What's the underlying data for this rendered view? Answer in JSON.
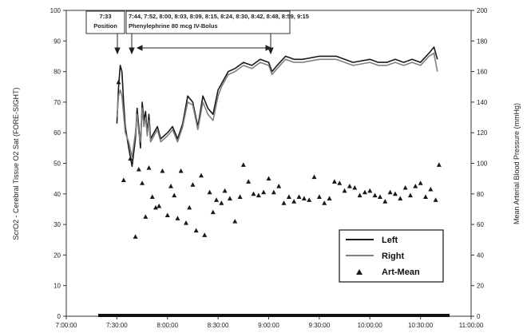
{
  "chart_data": {
    "type": "line",
    "title": "",
    "xlabel": "",
    "ylabel_left": "ScrO2 - Cerebral Tissue O2 Sat (FORE-SIGHT)",
    "ylabel_right": "Mean Arterial Blood Pressure (mmHg)",
    "xlim": [
      "7:00:00",
      "11:00:00"
    ],
    "ylim_left": [
      0,
      100
    ],
    "ylim_right": [
      0,
      200
    ],
    "x_ticks": [
      "7:00:00",
      "7:30:00",
      "8:00:00",
      "8:30:00",
      "9:00:00",
      "9:30:00",
      "10:00:00",
      "10:30:00",
      "11:00:00"
    ],
    "y_ticks_left": [
      "0",
      "10",
      "20",
      "30",
      "40",
      "50",
      "60",
      "70",
      "80",
      "90",
      "100"
    ],
    "y_ticks_right": [
      "0",
      "20",
      "40",
      "60",
      "80",
      "100",
      "120",
      "140",
      "160",
      "180",
      "200"
    ],
    "grid": false,
    "legend": {
      "placement": "bottom-right",
      "entries": [
        "Left",
        "Right",
        "Art-Mean"
      ]
    },
    "annotations": [
      {
        "time": "7:33",
        "label_lines": [
          "7:33",
          "Position"
        ]
      },
      {
        "times": "7:44, 7:52, 8:00, 8:03, 8:09, 8:15, 8:24, 8:30, 8:42, 8:48, 8:59, 9:15",
        "label": "Phenylephrine 80 mcg IV-Bolus"
      }
    ],
    "series": [
      {
        "name": "Left",
        "axis": "left",
        "color": "#1a1a1a",
        "x": [
          "7:30",
          "7:31",
          "7:32",
          "7:33",
          "7:34",
          "7:35",
          "7:37",
          "7:39",
          "7:41",
          "7:42",
          "7:43",
          "7:44",
          "7:45",
          "7:46",
          "7:47",
          "7:48",
          "7:49",
          "7:50",
          "7:52",
          "7:54",
          "7:56",
          "7:58",
          "8:00",
          "8:03",
          "8:06",
          "8:09",
          "8:12",
          "8:15",
          "8:18",
          "8:21",
          "8:24",
          "8:27",
          "8:30",
          "8:32",
          "8:34",
          "8:36",
          "8:40",
          "8:45",
          "8:50",
          "8:55",
          "9:00",
          "9:02",
          "9:05",
          "9:10",
          "9:15",
          "9:20",
          "9:30",
          "9:40",
          "9:50",
          "10:00",
          "10:05",
          "10:10",
          "10:15",
          "10:20",
          "10:25",
          "10:30",
          "10:35",
          "10:38",
          "10:40"
        ],
        "y": [
          63,
          75,
          82,
          80,
          70,
          62,
          55,
          49,
          58,
          68,
          62,
          55,
          70,
          64,
          67,
          60,
          66,
          58,
          60,
          62,
          58,
          59,
          60,
          62,
          58,
          63,
          72,
          70,
          62,
          72,
          68,
          66,
          74,
          76,
          78,
          80,
          81,
          83,
          82,
          84,
          83,
          80,
          82,
          85,
          84,
          84,
          85,
          85,
          83,
          84,
          83,
          83,
          84,
          83,
          84,
          83,
          86,
          88,
          84
        ]
      },
      {
        "name": "Right",
        "axis": "left",
        "color": "#808080",
        "x": [
          "7:30",
          "7:31",
          "7:32",
          "7:33",
          "7:34",
          "7:35",
          "7:37",
          "7:39",
          "7:41",
          "7:42",
          "7:43",
          "7:44",
          "7:45",
          "7:46",
          "7:47",
          "7:48",
          "7:49",
          "7:50",
          "7:52",
          "7:54",
          "7:56",
          "7:58",
          "8:00",
          "8:03",
          "8:06",
          "8:09",
          "8:12",
          "8:15",
          "8:18",
          "8:21",
          "8:24",
          "8:27",
          "8:30",
          "8:32",
          "8:34",
          "8:36",
          "8:40",
          "8:45",
          "8:50",
          "8:55",
          "9:00",
          "9:02",
          "9:05",
          "9:10",
          "9:15",
          "9:20",
          "9:30",
          "9:40",
          "9:50",
          "10:00",
          "10:05",
          "10:10",
          "10:15",
          "10:20",
          "10:25",
          "10:30",
          "10:35",
          "10:38",
          "10:40"
        ],
        "y": [
          65,
          72,
          74,
          72,
          66,
          60,
          57,
          52,
          60,
          66,
          60,
          57,
          68,
          62,
          65,
          59,
          64,
          57,
          59,
          61,
          57,
          58,
          59,
          61,
          57,
          62,
          70,
          69,
          61,
          70,
          66,
          64,
          72,
          75,
          77,
          79,
          80,
          82,
          81,
          83,
          82,
          79,
          81,
          84,
          83,
          83,
          84,
          84,
          82,
          83,
          82,
          82,
          83,
          82,
          83,
          82,
          85,
          86,
          80
        ]
      },
      {
        "name": "Art-Mean",
        "axis": "right",
        "type": "scatter",
        "marker": "triangle",
        "color": "#1a1a1a",
        "x": [
          "7:31",
          "7:34",
          "7:38",
          "7:41",
          "7:43",
          "7:45",
          "7:47",
          "7:49",
          "7:51",
          "7:53",
          "7:55",
          "7:57",
          "8:00",
          "8:02",
          "8:04",
          "8:06",
          "8:08",
          "8:11",
          "8:13",
          "8:15",
          "8:17",
          "8:20",
          "8:22",
          "8:25",
          "8:27",
          "8:29",
          "8:32",
          "8:34",
          "8:37",
          "8:40",
          "8:43",
          "8:45",
          "8:48",
          "8:51",
          "8:54",
          "8:57",
          "9:00",
          "9:03",
          "9:06",
          "9:09",
          "9:12",
          "9:15",
          "9:18",
          "9:21",
          "9:24",
          "9:27",
          "9:30",
          "9:33",
          "9:36",
          "9:39",
          "9:42",
          "9:45",
          "9:48",
          "9:51",
          "9:54",
          "9:57",
          "10:00",
          "10:03",
          "10:06",
          "10:09",
          "10:12",
          "10:15",
          "10:18",
          "10:21",
          "10:24",
          "10:27",
          "10:30",
          "10:33",
          "10:36",
          "10:39",
          "10:41"
        ],
        "y": [
          153,
          89,
          103,
          52,
          96,
          87,
          65,
          97,
          78,
          71,
          72,
          95,
          66,
          85,
          79,
          64,
          95,
          61,
          71,
          86,
          56,
          92,
          53,
          81,
          68,
          76,
          74,
          82,
          77,
          62,
          78,
          99,
          88,
          80,
          79,
          81,
          90,
          81,
          85,
          74,
          78,
          75,
          78,
          77,
          76,
          91,
          78,
          74,
          77,
          88,
          87,
          82,
          85,
          84,
          79,
          81,
          82,
          79,
          78,
          75,
          81,
          80,
          77,
          84,
          79,
          85,
          87,
          78,
          83,
          76,
          99
        ]
      }
    ]
  }
}
